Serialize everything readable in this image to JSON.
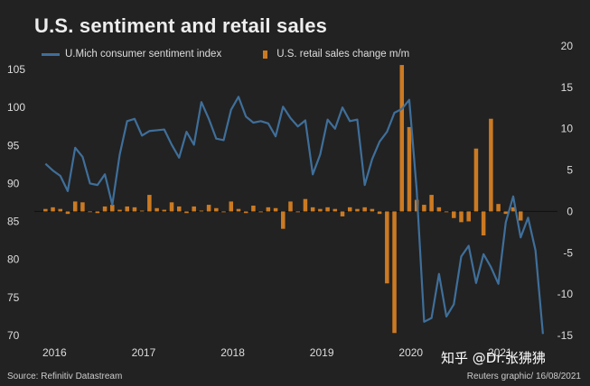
{
  "title": "U.S. sentiment and retail sales",
  "legend": {
    "sentiment_label": "U.Mich consumer sentiment index",
    "retail_label": "U.S. retail sales change m/m"
  },
  "source": "Source: Refinitiv Datastream",
  "credit": "Reuters graphic/ 16/08/2021",
  "watermark": "知乎 @Dr.张狒狒",
  "colors": {
    "background": "#222222",
    "sentiment_line": "#3f6f9a",
    "retail_bars": "#cc7a22",
    "axis_text": "#dddddd"
  },
  "chart_data": {
    "type": "line+bar",
    "title": "U.S. sentiment and retail sales",
    "x": [
      "2015-12",
      "2016-01",
      "2016-02",
      "2016-03",
      "2016-04",
      "2016-05",
      "2016-06",
      "2016-07",
      "2016-08",
      "2016-09",
      "2016-10",
      "2016-11",
      "2016-12",
      "2017-01",
      "2017-02",
      "2017-03",
      "2017-04",
      "2017-05",
      "2017-06",
      "2017-07",
      "2017-08",
      "2017-09",
      "2017-10",
      "2017-11",
      "2017-12",
      "2018-01",
      "2018-02",
      "2018-03",
      "2018-04",
      "2018-05",
      "2018-06",
      "2018-07",
      "2018-08",
      "2018-09",
      "2018-10",
      "2018-11",
      "2018-12",
      "2019-01",
      "2019-02",
      "2019-03",
      "2019-04",
      "2019-05",
      "2019-06",
      "2019-07",
      "2019-08",
      "2019-09",
      "2019-10",
      "2019-11",
      "2019-12",
      "2020-01",
      "2020-02",
      "2020-03",
      "2020-04",
      "2020-05",
      "2020-06",
      "2020-07",
      "2020-08",
      "2020-09",
      "2020-10",
      "2020-11",
      "2020-12",
      "2021-01",
      "2021-02",
      "2021-03",
      "2021-04",
      "2021-05",
      "2021-06",
      "2021-07",
      "2021-08"
    ],
    "x_tick_labels": [
      "2016",
      "2017",
      "2018",
      "2019",
      "2020",
      "2021"
    ],
    "series": [
      {
        "name": "U.Mich consumer sentiment index",
        "type": "line",
        "axis": "left",
        "values": [
          null,
          92.6,
          91.7,
          91.0,
          89.0,
          94.7,
          93.5,
          90.0,
          89.8,
          91.2,
          87.2,
          93.8,
          98.2,
          98.5,
          96.3,
          96.9,
          97.0,
          97.1,
          95.1,
          93.4,
          96.8,
          95.1,
          100.7,
          98.5,
          95.9,
          95.7,
          99.7,
          101.4,
          98.8,
          98.0,
          98.2,
          97.9,
          96.2,
          100.1,
          98.6,
          97.5,
          98.3,
          91.2,
          93.8,
          98.4,
          97.2,
          100.0,
          98.2,
          98.4,
          89.8,
          93.2,
          95.5,
          96.8,
          99.3,
          99.8,
          101.0,
          89.1,
          71.8,
          72.3,
          78.1,
          72.5,
          74.1,
          80.4,
          81.8,
          76.9,
          80.7,
          79.0,
          76.8,
          84.9,
          88.3,
          82.9,
          85.5,
          81.2,
          70.2
        ]
      },
      {
        "name": "U.S. retail sales change m/m",
        "type": "bar",
        "axis": "right",
        "values": [
          null,
          0.3,
          0.5,
          0.3,
          -0.3,
          1.2,
          1.1,
          0.0,
          -0.2,
          0.6,
          0.8,
          0.2,
          0.6,
          0.5,
          0.1,
          2.0,
          0.4,
          0.2,
          1.1,
          0.6,
          -0.2,
          0.6,
          0.1,
          0.8,
          0.4,
          -0.1,
          1.2,
          0.3,
          -0.2,
          0.7,
          -0.1,
          0.5,
          0.4,
          -2.1,
          1.2,
          -0.1,
          1.5,
          0.5,
          0.3,
          0.5,
          0.3,
          -0.6,
          0.5,
          0.3,
          0.5,
          0.3,
          -0.3,
          -8.7,
          -14.7,
          17.7,
          10.2,
          1.4,
          0.8,
          2.0,
          0.5,
          -0.1,
          -0.8,
          -1.3,
          -1.2,
          7.6,
          -2.9,
          11.2,
          0.9,
          -0.3,
          0.5,
          -1.1,
          null,
          null,
          null
        ]
      }
    ],
    "y_left": {
      "ylim": [
        70,
        106
      ],
      "ticks": [
        70,
        75,
        80,
        85,
        90,
        95,
        100,
        105
      ]
    },
    "y_right": {
      "ylim": [
        -15,
        20
      ],
      "ticks": [
        -15,
        -10,
        -5,
        0,
        5,
        10,
        15,
        20
      ]
    },
    "grid": false,
    "legend_position": "top-left"
  }
}
